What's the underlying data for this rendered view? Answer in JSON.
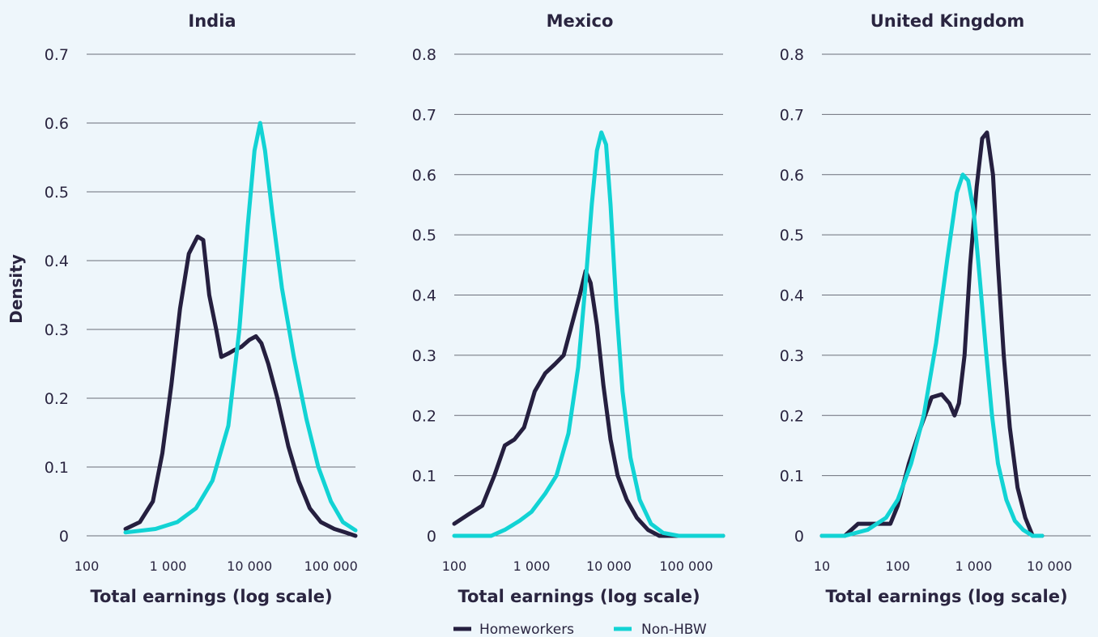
{
  "colors": {
    "homeworkers": "#251f3f",
    "non_hbw": "#12d3d4",
    "background": "#eef6fb",
    "grid": "#6b6f7a"
  },
  "ylabel": "Density",
  "legend": {
    "placement": "bottom-center",
    "items": [
      "Homeworkers",
      "Non-HBW"
    ]
  },
  "chart_data": [
    {
      "type": "line",
      "title": "India",
      "xlabel": "Total earnings (log scale)",
      "ylabel": "Density",
      "x_scale": "log",
      "xlim": [
        100,
        200000
      ],
      "ylim": [
        0,
        0.7
      ],
      "x_ticks": [
        100,
        1000,
        10000,
        100000
      ],
      "x_tick_labels": [
        "100",
        "1 000",
        "10 000",
        "100 000"
      ],
      "y_ticks": [
        0,
        0.1,
        0.2,
        0.3,
        0.4,
        0.5,
        0.6,
        0.7
      ],
      "y_tick_labels": [
        "0",
        "0.1",
        "0.2",
        "0.3",
        "0.4",
        "0.5",
        "0.6",
        "0.7"
      ],
      "grid": true,
      "series": [
        {
          "name": "Homeworkers",
          "points": [
            [
              300,
              0.01
            ],
            [
              450,
              0.02
            ],
            [
              650,
              0.05
            ],
            [
              850,
              0.12
            ],
            [
              1100,
              0.22
            ],
            [
              1400,
              0.33
            ],
            [
              1800,
              0.41
            ],
            [
              2300,
              0.435
            ],
            [
              2700,
              0.43
            ],
            [
              3200,
              0.35
            ],
            [
              3900,
              0.3
            ],
            [
              4500,
              0.26
            ],
            [
              5500,
              0.265
            ],
            [
              6500,
              0.27
            ],
            [
              8000,
              0.275
            ],
            [
              10000,
              0.285
            ],
            [
              12000,
              0.29
            ],
            [
              14000,
              0.28
            ],
            [
              17000,
              0.25
            ],
            [
              22000,
              0.2
            ],
            [
              30000,
              0.13
            ],
            [
              40000,
              0.08
            ],
            [
              55000,
              0.04
            ],
            [
              75000,
              0.02
            ],
            [
              110000,
              0.01
            ],
            [
              150000,
              0.005
            ],
            [
              200000,
              0.0
            ]
          ]
        },
        {
          "name": "Non-HBW",
          "points": [
            [
              300,
              0.005
            ],
            [
              700,
              0.01
            ],
            [
              1300,
              0.02
            ],
            [
              2200,
              0.04
            ],
            [
              3500,
              0.08
            ],
            [
              5500,
              0.16
            ],
            [
              7500,
              0.3
            ],
            [
              9500,
              0.45
            ],
            [
              11500,
              0.56
            ],
            [
              13500,
              0.6
            ],
            [
              15500,
              0.56
            ],
            [
              19000,
              0.47
            ],
            [
              25000,
              0.36
            ],
            [
              35000,
              0.26
            ],
            [
              50000,
              0.17
            ],
            [
              70000,
              0.1
            ],
            [
              100000,
              0.05
            ],
            [
              140000,
              0.02
            ],
            [
              200000,
              0.008
            ]
          ]
        }
      ]
    },
    {
      "type": "line",
      "title": "Mexico",
      "xlabel": "Total earnings (log scale)",
      "ylabel": "Density",
      "x_scale": "log",
      "xlim": [
        100,
        300000
      ],
      "ylim": [
        0,
        0.8
      ],
      "x_ticks": [
        100,
        1000,
        10000,
        100000
      ],
      "x_tick_labels": [
        "100",
        "1 000",
        "10 000",
        "100 000"
      ],
      "y_ticks": [
        0,
        0.1,
        0.2,
        0.3,
        0.4,
        0.5,
        0.6,
        0.7,
        0.8
      ],
      "y_tick_labels": [
        "0",
        "0.1",
        "0.2",
        "0.3",
        "0.4",
        "0.5",
        "0.6",
        "0.7",
        "0.8"
      ],
      "grid": true,
      "series": [
        {
          "name": "Homeworkers",
          "points": [
            [
              100,
              0.02
            ],
            [
              150,
              0.035
            ],
            [
              230,
              0.05
            ],
            [
              330,
              0.1
            ],
            [
              450,
              0.15
            ],
            [
              600,
              0.16
            ],
            [
              800,
              0.18
            ],
            [
              1100,
              0.24
            ],
            [
              1500,
              0.27
            ],
            [
              2000,
              0.285
            ],
            [
              2600,
              0.3
            ],
            [
              3300,
              0.35
            ],
            [
              4200,
              0.4
            ],
            [
              5000,
              0.44
            ],
            [
              5800,
              0.42
            ],
            [
              7000,
              0.35
            ],
            [
              8500,
              0.25
            ],
            [
              10500,
              0.16
            ],
            [
              13000,
              0.1
            ],
            [
              17000,
              0.06
            ],
            [
              23000,
              0.03
            ],
            [
              32000,
              0.01
            ],
            [
              45000,
              0.0
            ],
            [
              300000,
              0.0
            ]
          ]
        },
        {
          "name": "Non-HBW",
          "points": [
            [
              100,
              0.0
            ],
            [
              300,
              0.0
            ],
            [
              450,
              0.01
            ],
            [
              700,
              0.025
            ],
            [
              1000,
              0.04
            ],
            [
              1500,
              0.07
            ],
            [
              2100,
              0.1
            ],
            [
              3000,
              0.17
            ],
            [
              4000,
              0.28
            ],
            [
              5000,
              0.42
            ],
            [
              6000,
              0.55
            ],
            [
              7000,
              0.64
            ],
            [
              8000,
              0.67
            ],
            [
              9200,
              0.65
            ],
            [
              10500,
              0.55
            ],
            [
              12500,
              0.38
            ],
            [
              15000,
              0.24
            ],
            [
              19000,
              0.13
            ],
            [
              25000,
              0.06
            ],
            [
              35000,
              0.02
            ],
            [
              50000,
              0.005
            ],
            [
              80000,
              0.0
            ],
            [
              300000,
              0.0
            ]
          ]
        }
      ]
    },
    {
      "type": "line",
      "title": "United Kingdom",
      "xlabel": "Total earnings (log scale)",
      "ylabel": "Density",
      "x_scale": "log",
      "xlim": [
        10,
        35000
      ],
      "ylim": [
        0,
        0.8
      ],
      "x_ticks": [
        10,
        100,
        1000,
        10000
      ],
      "x_tick_labels": [
        "10",
        "100",
        "1 000",
        "10 000"
      ],
      "y_ticks": [
        0,
        0.1,
        0.2,
        0.3,
        0.4,
        0.5,
        0.6,
        0.7,
        0.8
      ],
      "y_tick_labels": [
        "0",
        "0.1",
        "0.2",
        "0.3",
        "0.4",
        "0.5",
        "0.6",
        "0.7",
        "0.8"
      ],
      "grid": true,
      "series": [
        {
          "name": "Homeworkers",
          "points": [
            [
              10,
              0.0
            ],
            [
              20,
              0.0
            ],
            [
              30,
              0.02
            ],
            [
              50,
              0.02
            ],
            [
              80,
              0.02
            ],
            [
              100,
              0.05
            ],
            [
              140,
              0.12
            ],
            [
              200,
              0.18
            ],
            [
              280,
              0.23
            ],
            [
              380,
              0.235
            ],
            [
              480,
              0.22
            ],
            [
              560,
              0.2
            ],
            [
              640,
              0.22
            ],
            [
              760,
              0.3
            ],
            [
              900,
              0.45
            ],
            [
              1100,
              0.58
            ],
            [
              1300,
              0.66
            ],
            [
              1500,
              0.67
            ],
            [
              1800,
              0.6
            ],
            [
              2100,
              0.45
            ],
            [
              2500,
              0.3
            ],
            [
              3000,
              0.18
            ],
            [
              3800,
              0.08
            ],
            [
              4800,
              0.03
            ],
            [
              6000,
              0.0
            ],
            [
              8000,
              0.0
            ]
          ]
        },
        {
          "name": "Non-HBW",
          "points": [
            [
              10,
              0.0
            ],
            [
              20,
              0.0
            ],
            [
              40,
              0.01
            ],
            [
              70,
              0.03
            ],
            [
              100,
              0.06
            ],
            [
              150,
              0.12
            ],
            [
              220,
              0.2
            ],
            [
              320,
              0.32
            ],
            [
              450,
              0.46
            ],
            [
              600,
              0.57
            ],
            [
              720,
              0.6
            ],
            [
              850,
              0.59
            ],
            [
              1000,
              0.54
            ],
            [
              1200,
              0.43
            ],
            [
              1450,
              0.31
            ],
            [
              1750,
              0.2
            ],
            [
              2100,
              0.12
            ],
            [
              2700,
              0.06
            ],
            [
              3500,
              0.025
            ],
            [
              4500,
              0.01
            ],
            [
              6000,
              0.0
            ],
            [
              8000,
              0.0
            ]
          ]
        }
      ]
    }
  ]
}
